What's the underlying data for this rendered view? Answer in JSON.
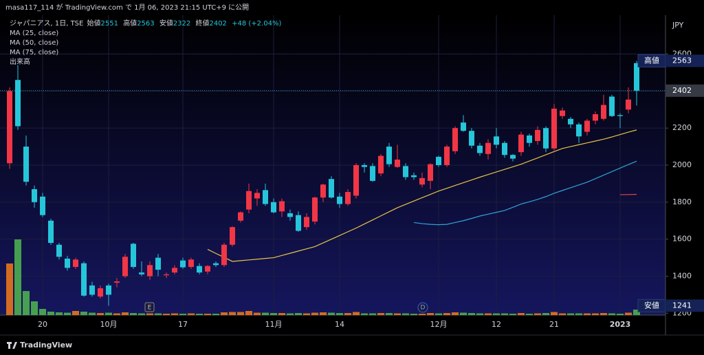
{
  "header": {
    "text": "masa117_114 が TradingView.com で 1月 06, 2023 21:15 UTC+9 に公開"
  },
  "footer": {
    "brand": "TradingView"
  },
  "legend": {
    "symbol": "ジャパニアス, 1日, TSE",
    "open_label": "始値",
    "high_label": "高値",
    "low_label": "安値",
    "close_label": "終値",
    "change": "+48 (+2.04%)",
    "volume": "出来高"
  },
  "events": [
    "E",
    "D"
  ],
  "chart_data": {
    "type": "candlestick",
    "currency": "JPY",
    "categories": [
      null,
      null,
      null,
      null,
      "20",
      null,
      null,
      null,
      null,
      null,
      null,
      null,
      "10月",
      null,
      null,
      null,
      null,
      null,
      null,
      null,
      null,
      "17",
      null,
      null,
      null,
      null,
      null,
      null,
      null,
      null,
      null,
      null,
      "11月",
      null,
      null,
      null,
      null,
      null,
      null,
      null,
      "14",
      null,
      null,
      null,
      null,
      null,
      null,
      null,
      null,
      null,
      null,
      null,
      "12月",
      null,
      null,
      null,
      null,
      null,
      null,
      "12",
      null,
      null,
      null,
      null,
      null,
      null,
      "21",
      null,
      null,
      null,
      null,
      null,
      null,
      null,
      "2023",
      null,
      null
    ],
    "open": [
      2010,
      2460,
      2100,
      1870,
      1830,
      1700,
      1570,
      1495,
      1450,
      1470,
      1350,
      1290,
      1350,
      1365,
      1400,
      1575,
      1420,
      1400,
      1500,
      1405,
      1420,
      1485,
      1450,
      1455,
      1425,
      1470,
      1460,
      1570,
      1700,
      1760,
      1820,
      1865,
      1800,
      1750,
      1740,
      1730,
      1665,
      1695,
      1825,
      1925,
      1830,
      1790,
      1835,
      2000,
      1995,
      1955,
      2100,
      1990,
      1995,
      1945,
      1895,
      1915,
      2045,
      2000,
      2075,
      2230,
      2185,
      2105,
      2060,
      2155,
      2120,
      2055,
      2070,
      2160,
      2130,
      2200,
      2090,
      2265,
      2250,
      2220,
      2180,
      2240,
      2250,
      2370,
      2270,
      2300,
      2551
    ],
    "high": [
      2420,
      2540,
      2160,
      1890,
      1850,
      1710,
      1580,
      1510,
      1500,
      1480,
      1370,
      1350,
      1360,
      1390,
      1520,
      1580,
      1480,
      1480,
      1520,
      1420,
      1460,
      1500,
      1500,
      1470,
      1460,
      1480,
      1580,
      1670,
      1750,
      1900,
      1870,
      1900,
      1820,
      1820,
      1760,
      1750,
      1740,
      1830,
      1900,
      1940,
      1850,
      1870,
      2010,
      2010,
      2010,
      2060,
      2120,
      2110,
      2010,
      1960,
      1960,
      2010,
      2050,
      2110,
      2210,
      2270,
      2200,
      2120,
      2140,
      2200,
      2130,
      2060,
      2180,
      2170,
      2210,
      2210,
      2330,
      2310,
      2260,
      2230,
      2250,
      2290,
      2380,
      2380,
      2280,
      2420,
      2563
    ],
    "low": [
      1980,
      2190,
      1890,
      1770,
      1720,
      1570,
      1490,
      1430,
      1440,
      1290,
      1290,
      1280,
      1241,
      1340,
      1390,
      1440,
      1400,
      1380,
      1400,
      1390,
      1410,
      1440,
      1440,
      1410,
      1410,
      1450,
      1450,
      1560,
      1690,
      1740,
      1780,
      1780,
      1740,
      1720,
      1700,
      1640,
      1650,
      1680,
      1800,
      1820,
      1770,
      1780,
      1820,
      1960,
      1910,
      1940,
      1990,
      1985,
      1920,
      1920,
      1880,
      1870,
      1990,
      1990,
      2060,
      2180,
      2090,
      2050,
      2030,
      2090,
      2040,
      2020,
      2050,
      2100,
      2110,
      2070,
      2080,
      2250,
      2200,
      2120,
      2160,
      2220,
      2240,
      2260,
      2200,
      2280,
      2322
    ],
    "close": [
      2400,
      2210,
      1910,
      1800,
      1730,
      1580,
      1505,
      1445,
      1490,
      1295,
      1300,
      1335,
      1300,
      1372,
      1505,
      1450,
      1410,
      1460,
      1435,
      1410,
      1445,
      1448,
      1490,
      1420,
      1455,
      1460,
      1570,
      1665,
      1745,
      1860,
      1850,
      1790,
      1745,
      1805,
      1720,
      1645,
      1720,
      1825,
      1895,
      1825,
      1790,
      1855,
      2000,
      1990,
      1915,
      2050,
      2005,
      2030,
      1935,
      1935,
      1930,
      2005,
      2000,
      2100,
      2200,
      2185,
      2105,
      2065,
      2120,
      2110,
      2055,
      2035,
      2165,
      2120,
      2190,
      2090,
      2305,
      2295,
      2220,
      2155,
      2240,
      2275,
      2325,
      2265,
      2265,
      2354,
      2402
    ],
    "volume": [
      7500,
      11000,
      3500,
      2000,
      900,
      500,
      400,
      350,
      600,
      500,
      350,
      300,
      350,
      250,
      400,
      300,
      250,
      250,
      250,
      200,
      250,
      200,
      250,
      200,
      200,
      200,
      400,
      450,
      450,
      600,
      350,
      350,
      300,
      300,
      250,
      300,
      250,
      350,
      400,
      350,
      300,
      300,
      450,
      250,
      250,
      300,
      300,
      250,
      250,
      200,
      200,
      300,
      250,
      300,
      400,
      350,
      300,
      250,
      250,
      250,
      250,
      200,
      300,
      200,
      250,
      300,
      450,
      250,
      250,
      250,
      250,
      250,
      300,
      250,
      200,
      350,
      800
    ],
    "series": [
      {
        "name": "MA (25, close)",
        "color": "#e8c547",
        "values": [
          null,
          null,
          null,
          null,
          null,
          null,
          null,
          null,
          null,
          null,
          null,
          null,
          null,
          null,
          null,
          null,
          null,
          null,
          null,
          null,
          null,
          null,
          null,
          null,
          1545,
          1523,
          1502,
          1480,
          1484,
          1488,
          1492,
          1496,
          1500,
          1512,
          1524,
          1536,
          1548,
          1560,
          1580,
          1600,
          1620,
          1640,
          1660,
          1682,
          1704,
          1726,
          1748,
          1770,
          1788,
          1806,
          1824,
          1842,
          1860,
          1875,
          1890,
          1905,
          1920,
          1935,
          1949,
          1963,
          1977,
          1991,
          2005,
          2022,
          2039,
          2056,
          2073,
          2090,
          2100,
          2110,
          2120,
          2130,
          2140,
          2152,
          2165,
          2178,
          2190
        ]
      },
      {
        "name": "MA (50, close)",
        "color": "#2fa5d8",
        "values": [
          null,
          null,
          null,
          null,
          null,
          null,
          null,
          null,
          null,
          null,
          null,
          null,
          null,
          null,
          null,
          null,
          null,
          null,
          null,
          null,
          null,
          null,
          null,
          null,
          null,
          null,
          null,
          null,
          null,
          null,
          null,
          null,
          null,
          null,
          null,
          null,
          null,
          null,
          null,
          null,
          null,
          null,
          null,
          null,
          null,
          null,
          null,
          null,
          null,
          1690,
          1684,
          1680,
          1678,
          1680,
          1690,
          1700,
          1712,
          1725,
          1735,
          1745,
          1755,
          1772,
          1790,
          1802,
          1815,
          1830,
          1848,
          1863,
          1878,
          1893,
          1908,
          1927,
          1946,
          1965,
          1984,
          2003,
          2021
        ]
      },
      {
        "name": "MA (75, close)",
        "color": "#e84545",
        "values": [
          null,
          null,
          null,
          null,
          null,
          null,
          null,
          null,
          null,
          null,
          null,
          null,
          null,
          null,
          null,
          null,
          null,
          null,
          null,
          null,
          null,
          null,
          null,
          null,
          null,
          null,
          null,
          null,
          null,
          null,
          null,
          null,
          null,
          null,
          null,
          null,
          null,
          null,
          null,
          null,
          null,
          null,
          null,
          null,
          null,
          null,
          null,
          null,
          null,
          null,
          null,
          null,
          null,
          null,
          null,
          null,
          null,
          null,
          null,
          null,
          null,
          null,
          null,
          null,
          null,
          null,
          null,
          null,
          null,
          null,
          null,
          null,
          null,
          null,
          1840,
          1841,
          1842
        ]
      }
    ],
    "up_color": "#f23645",
    "down_color": "#26c6da",
    "volume_up_color": "#e8761a",
    "volume_down_color": "#4caf50",
    "ylim": [
      1190,
      2810
    ],
    "yticks": [
      1200,
      1400,
      1600,
      1800,
      2000,
      2200,
      2400,
      2600
    ],
    "vlim": [
      0,
      16000
    ],
    "grid": true
  }
}
